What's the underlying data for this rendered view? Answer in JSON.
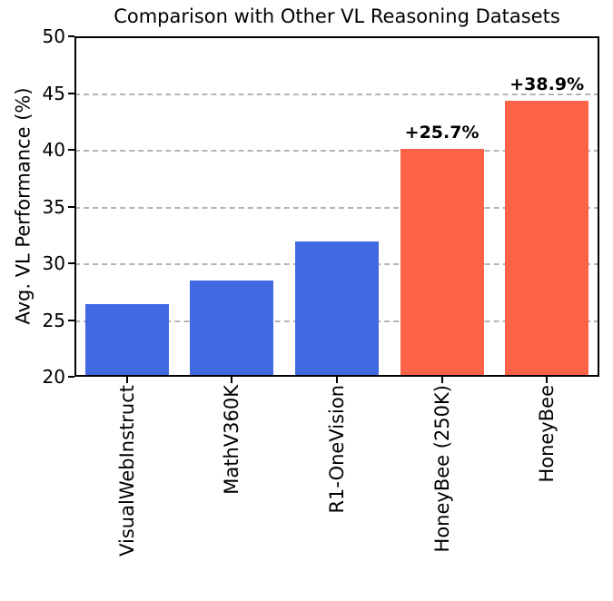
{
  "chart_data": {
    "type": "bar",
    "title": "Comparison with Other VL Reasoning Datasets",
    "xlabel": "",
    "ylabel": "Avg. VL Performance (%)",
    "categories": [
      "VisualWebInstruct",
      "MathV360K",
      "R1-OneVision",
      "HoneyBee (250K)",
      "HoneyBee"
    ],
    "values": [
      26.4,
      28.5,
      31.9,
      40.1,
      44.3
    ],
    "bar_colors": [
      "#4169e1",
      "#4169e1",
      "#4169e1",
      "#ff6347",
      "#ff6347"
    ],
    "annotations": [
      {
        "category_index": 3,
        "text": "+25.7%"
      },
      {
        "category_index": 4,
        "text": "+38.9%"
      }
    ],
    "ylim": [
      20,
      50
    ],
    "yticks": [
      20,
      25,
      30,
      35,
      40,
      45,
      50
    ],
    "grid": "horizontal-dashed",
    "legend": "none",
    "colors": {
      "baseline_bar": "#4169e1",
      "highlight_bar": "#ff6347",
      "gridline": "#b3b3b3",
      "axis": "#000000"
    }
  }
}
